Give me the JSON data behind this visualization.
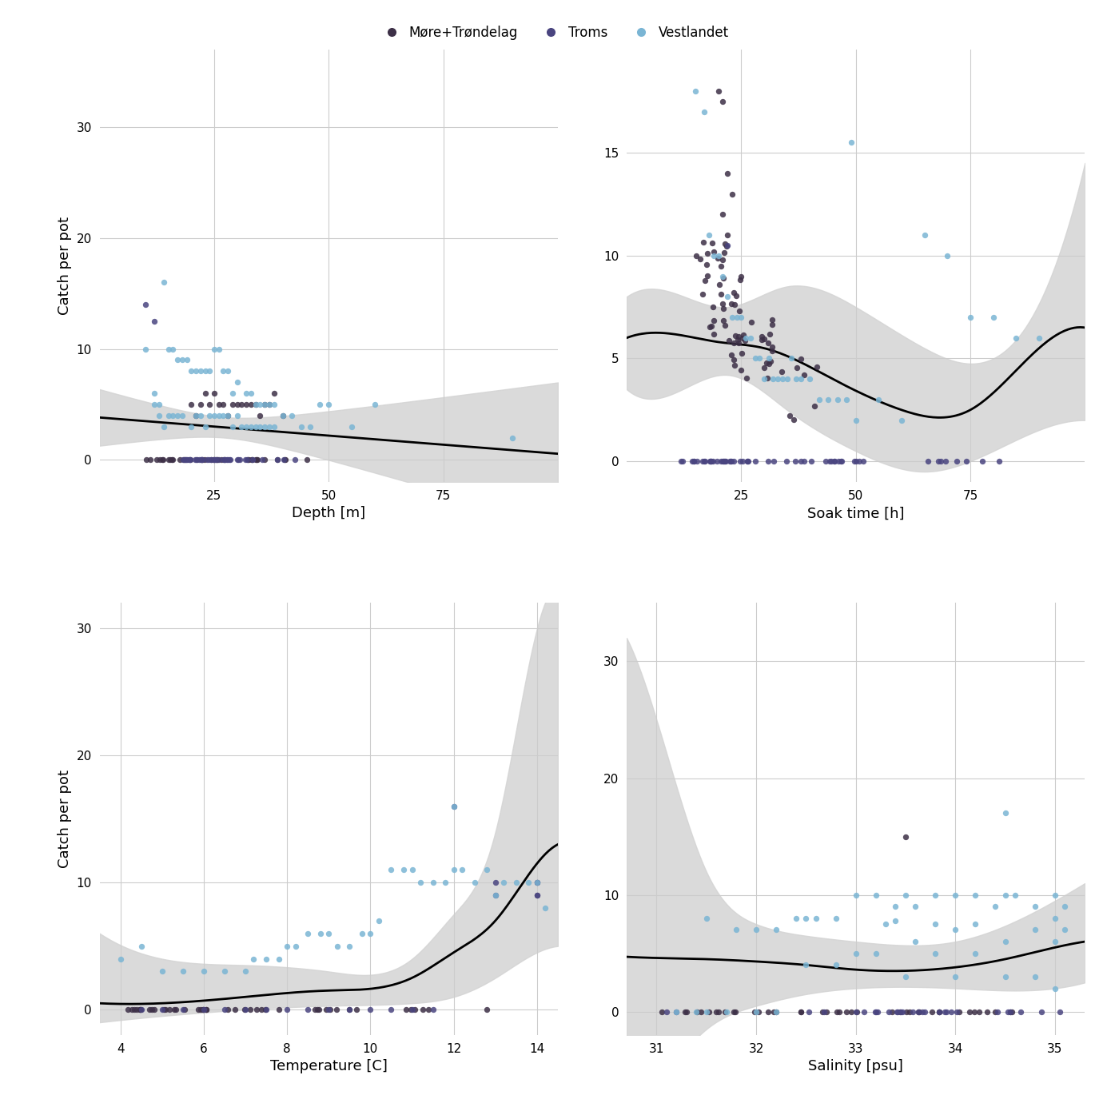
{
  "colors": {
    "more_trondelag": "#3d3047",
    "troms": "#4a4580",
    "vestlandet": "#7ab5d4"
  },
  "ci_color": "#d4d4d4",
  "line_color": "#000000",
  "dot_size": 28,
  "alpha": 0.85,
  "subplots": {
    "depth": {
      "xlabel": "Depth [m]",
      "ylabel": "Catch per pot",
      "xlim": [
        0,
        100
      ],
      "ylim": [
        -2,
        37
      ],
      "xticks": [
        25,
        50,
        75
      ],
      "yticks": [
        0,
        10,
        20,
        30
      ]
    },
    "soak": {
      "xlabel": "Soak time [h]",
      "ylabel": "",
      "xlim": [
        0,
        100
      ],
      "ylim": [
        -1,
        20
      ],
      "xticks": [
        25,
        50,
        75
      ],
      "yticks": [
        0,
        5,
        10,
        15
      ]
    },
    "temp": {
      "xlabel": "Temperature [C]",
      "ylabel": "Catch per pot",
      "xlim": [
        3.5,
        14.5
      ],
      "ylim": [
        -2,
        32
      ],
      "xticks": [
        4,
        6,
        8,
        10,
        12,
        14
      ],
      "yticks": [
        0,
        10,
        20,
        30
      ]
    },
    "sal": {
      "xlabel": "Salinity [psu]",
      "ylabel": "",
      "xlim": [
        30.7,
        35.3
      ],
      "ylim": [
        -2,
        35
      ],
      "xticks": [
        31,
        32,
        33,
        34,
        35
      ],
      "yticks": [
        0,
        10,
        20,
        30
      ]
    }
  }
}
